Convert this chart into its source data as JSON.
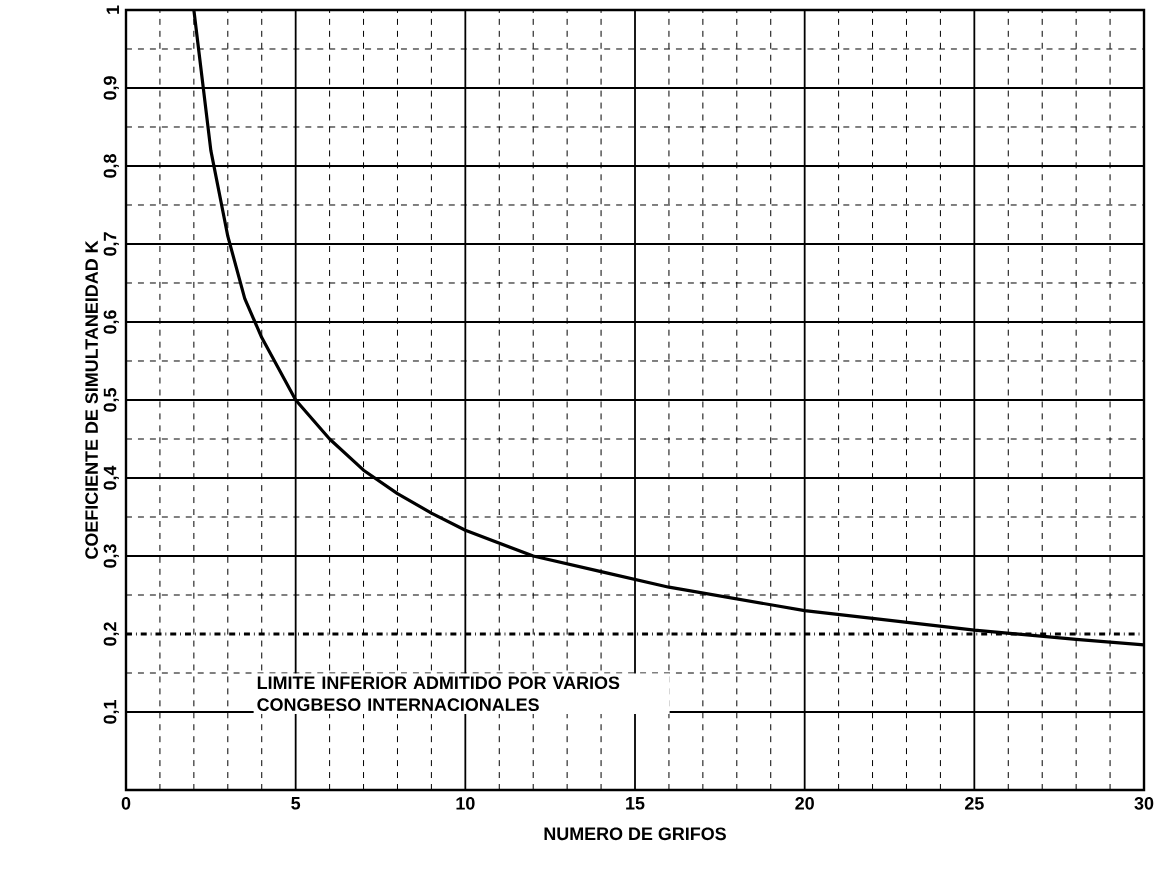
{
  "chart_data": {
    "type": "line",
    "xlabel": "NUMERO   DE   GRIFOS",
    "ylabel": "COEFICIENTE  DE  SIMULTANEIDAD  K",
    "x": [
      2,
      2.5,
      3,
      3.5,
      4,
      5,
      6,
      7,
      8,
      9,
      10,
      12,
      14,
      16,
      18,
      20,
      22,
      25,
      28,
      30
    ],
    "series": [
      {
        "color": "#000000",
        "values": [
          1.0,
          0.82,
          0.71,
          0.63,
          0.58,
          0.5,
          0.45,
          0.41,
          0.38,
          0.355,
          0.333,
          0.3,
          0.28,
          0.26,
          0.245,
          0.23,
          0.22,
          0.205,
          0.193,
          0.186
        ]
      }
    ],
    "xlim": [
      0,
      30
    ],
    "ylim": [
      0,
      1
    ],
    "xticks": [
      0,
      5,
      10,
      15,
      20,
      25,
      30
    ],
    "yticks": [
      {
        "value": 0.1,
        "label": "0,1"
      },
      {
        "value": 0.2,
        "label": "0,2"
      },
      {
        "value": 0.3,
        "label": "0,3"
      },
      {
        "value": 0.4,
        "label": "0,4"
      },
      {
        "value": 0.5,
        "label": "0,5"
      },
      {
        "value": 0.6,
        "label": "0,6"
      },
      {
        "value": 0.7,
        "label": "0,7"
      },
      {
        "value": 0.8,
        "label": "0,8"
      },
      {
        "value": 0.9,
        "label": "0,9"
      },
      {
        "value": 1,
        "label": "1"
      }
    ],
    "ref_lines": [
      {
        "axis": "y",
        "value": 0.2,
        "label": "LIMITE INFERIOR ADMITIDO POR VARIOS CONGBESO INTERNACIONALES",
        "color": "#000000",
        "line_style": "dashdot"
      }
    ],
    "grid": true,
    "marker": "none",
    "line_style": "solid"
  }
}
